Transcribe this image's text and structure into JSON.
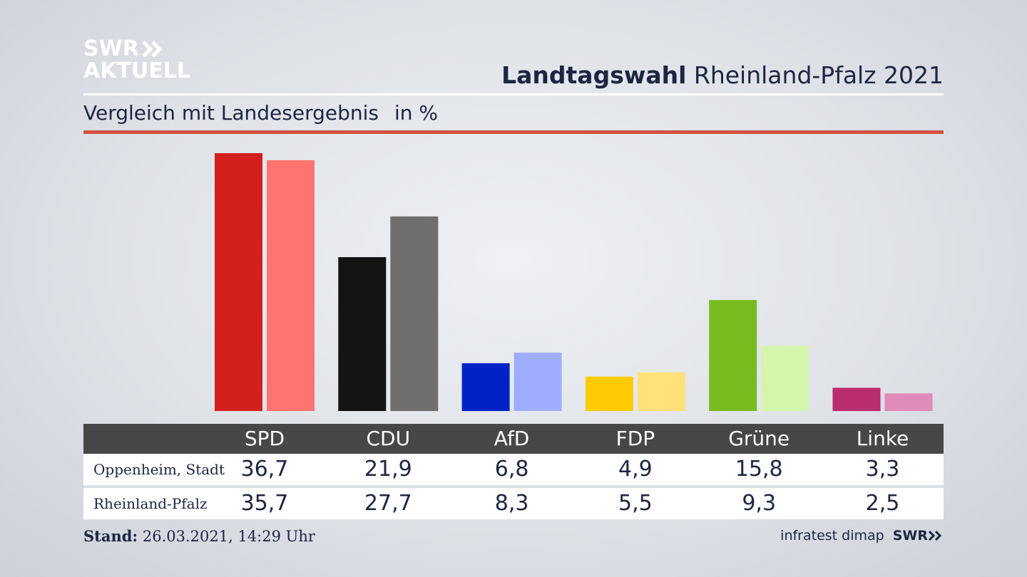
{
  "logo": {
    "line1": "SWR",
    "line2": "AKTUELL"
  },
  "header": {
    "title_bold": "Landtagswahl",
    "title_rest": "Rheinland-Pfalz 2021"
  },
  "subtitle": {
    "text": "Vergleich mit Landesergebnis",
    "unit": "in %"
  },
  "table": {
    "row_labels": [
      "Oppenheim, Stadt",
      "Rheinland-Pfalz"
    ],
    "local": [
      "36,7",
      "21,9",
      "6,8",
      "4,9",
      "15,8",
      "3,3"
    ],
    "state": [
      "35,7",
      "27,7",
      "8,3",
      "5,5",
      "9,3",
      "2,5"
    ]
  },
  "footer": {
    "stand_label": "Stand:",
    "stand_value": "26.03.2021, 14:29 Uhr",
    "source": "infratest dimap",
    "brand": "SWR"
  },
  "colors": {
    "accent_rule": "#d0513f",
    "text": "#1c2541",
    "header_bg": "#474747"
  },
  "chart_data": {
    "type": "bar",
    "categories": [
      "SPD",
      "CDU",
      "AfD",
      "FDP",
      "Grüne",
      "Linke"
    ],
    "series": [
      {
        "name": "Oppenheim, Stadt",
        "values": [
          36.7,
          21.9,
          6.8,
          4.9,
          15.8,
          3.3
        ],
        "colors": [
          "#d41f1f",
          "#141414",
          "#0222c8",
          "#ffcb05",
          "#78bb1e",
          "#b92d6e"
        ]
      },
      {
        "name": "Rheinland-Pfalz",
        "values": [
          35.7,
          27.7,
          8.3,
          5.5,
          9.3,
          2.5
        ],
        "colors": [
          "#ff7370",
          "#706f6e",
          "#9eadff",
          "#ffe27a",
          "#d5f5ad",
          "#e08bb9"
        ]
      }
    ],
    "title": "Landtagswahl Rheinland-Pfalz 2021",
    "subtitle": "Vergleich mit Landesergebnis",
    "ylabel": "in %",
    "ylim": [
      0,
      36.7
    ],
    "grid": false,
    "legend": "table-below"
  }
}
